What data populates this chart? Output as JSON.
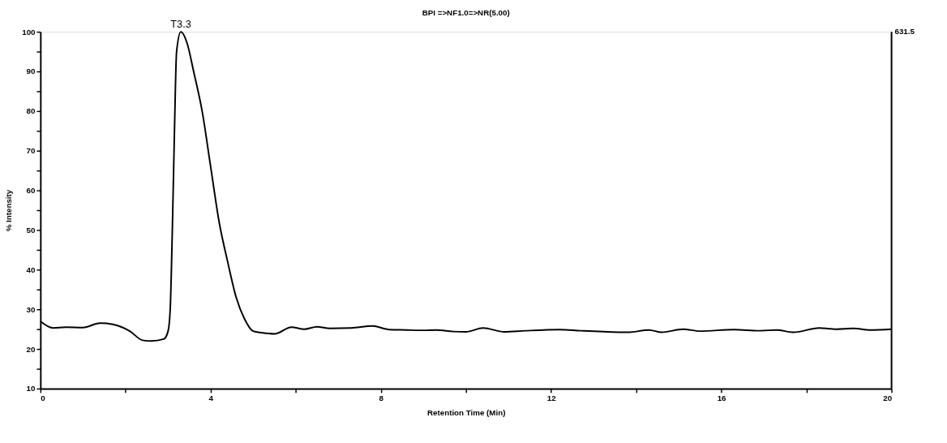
{
  "chart_data": {
    "type": "line",
    "title": "BPI =>NF1.0=>NR(5.00)",
    "xlabel": "Retention Time (Min)",
    "ylabel": "% Intensity",
    "x": [
      0,
      0.3,
      0.6,
      1.0,
      1.4,
      1.7,
      2.1,
      2.4,
      2.6,
      2.9,
      3.0,
      3.05,
      3.1,
      3.15,
      3.2,
      3.3,
      3.45,
      3.6,
      3.8,
      4.0,
      4.2,
      4.4,
      4.6,
      4.8,
      5.0,
      5.2,
      5.5,
      5.9,
      6.2,
      6.5,
      6.8,
      7.3,
      7.8,
      8.2,
      8.6,
      9.0,
      9.3,
      9.7,
      10.0,
      10.4,
      10.9,
      11.4,
      12.2,
      12.7,
      13.8,
      14.3,
      14.6,
      15.1,
      15.5,
      16.3,
      16.9,
      17.3,
      17.7,
      18.3,
      18.7,
      19.1,
      19.5,
      20.0
    ],
    "series": [
      {
        "color": "#000000",
        "values": [
          27.0,
          25.3,
          25.5,
          25.4,
          26.5,
          26.2,
          24.5,
          22.2,
          22.0,
          22.5,
          24.5,
          30,
          50,
          75,
          95,
          100,
          97,
          90,
          80,
          66,
          52,
          42,
          33,
          27.5,
          24.5,
          24.1,
          23.8,
          25.5,
          25.0,
          25.6,
          25.2,
          25.3,
          25.8,
          24.9,
          24.8,
          24.7,
          24.8,
          24.4,
          24.3,
          25.3,
          24.3,
          24.6,
          24.9,
          24.6,
          24.2,
          24.8,
          24.2,
          25.0,
          24.5,
          24.9,
          24.6,
          24.8,
          24.2,
          25.3,
          25.0,
          25.2,
          24.8,
          25.0
        ]
      }
    ],
    "xlim": [
      0,
      20
    ],
    "ylim": [
      10,
      100
    ],
    "xticks": [
      0,
      {
        "value": 2,
        "label": null
      },
      4,
      {
        "value": 6,
        "label": null
      },
      8,
      {
        "value": 10,
        "label": null
      },
      12,
      {
        "value": 14,
        "label": null
      },
      16,
      {
        "value": 18,
        "label": null
      },
      20
    ],
    "yticks": [
      10,
      {
        "value": 15,
        "label": null
      },
      20,
      {
        "value": 25,
        "label": null
      },
      30,
      {
        "value": 35,
        "label": null
      },
      40,
      {
        "value": 45,
        "label": null
      },
      50,
      {
        "value": 55,
        "label": null
      },
      60,
      {
        "value": 65,
        "label": null
      },
      70,
      {
        "value": 75,
        "label": null
      },
      80,
      {
        "value": 85,
        "label": null
      },
      90,
      {
        "value": 95,
        "label": null
      },
      100
    ],
    "annotations": [
      {
        "text": "T3.3",
        "x": 3.3,
        "y": 100
      },
      "631.5"
    ],
    "grid": false,
    "marker": "none",
    "line_style": "solid"
  }
}
